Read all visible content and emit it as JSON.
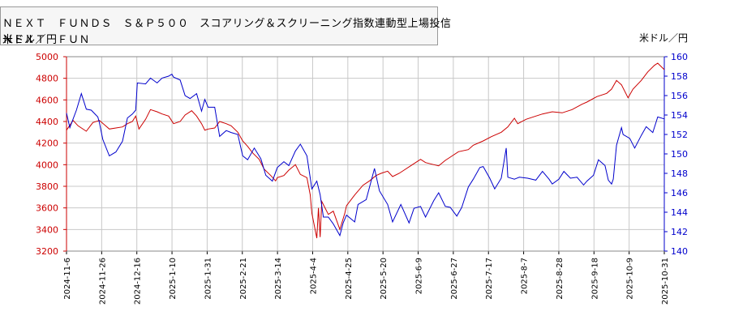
{
  "title": {
    "line1": "ＮＥＸＴ　ＦＵＮＤＳ　Ｓ＆Ｐ５００　スコアリング＆スクリーニング指数連動型上場投信",
    "line2_overlap_a": "米ドル／円",
    "line2_overlap_b": "ＮＥＸＴ　ＦＵＮ"
  },
  "right_unit": "米ドル／円",
  "colors": {
    "fund": "#cc0000",
    "usdjpy": "#0000cc",
    "grid": "#c8c8c8",
    "left_axis": "#cc0000",
    "right_axis": "#0000cc"
  },
  "chart_data": {
    "type": "line",
    "x_labels": [
      "2024-11-6",
      "2024-11-26",
      "2024-12-16",
      "2025-1-10",
      "2025-1-31",
      "2025-2-21",
      "2025-3-14",
      "2025-4-4",
      "2025-4-25",
      "2025-5-20",
      "2025-6-9",
      "2025-6-27",
      "2025-7-17",
      "2025-8-7",
      "2025-8-28",
      "2025-9-18",
      "2025-10-9",
      "2025-10-31"
    ],
    "x_range": [
      "2024-11-06",
      "2025-11-04"
    ],
    "y_left": {
      "ticks": [
        3200,
        3400,
        3600,
        3800,
        4000,
        4200,
        4400,
        4600,
        4800,
        5000
      ],
      "range": [
        3200,
        5000
      ]
    },
    "y_right": {
      "ticks": [
        140,
        142,
        144,
        146,
        148,
        150,
        152,
        154,
        156,
        158,
        160
      ],
      "range": [
        140,
        160
      ]
    },
    "grid": true,
    "series": [
      {
        "axis": "left",
        "points": [
          [
            "2024-11-06",
            4320
          ],
          [
            "2024-11-10",
            4410
          ],
          [
            "2024-11-13",
            4360
          ],
          [
            "2024-11-18",
            4310
          ],
          [
            "2024-11-22",
            4390
          ],
          [
            "2024-11-26",
            4410
          ],
          [
            "2024-12-02",
            4330
          ],
          [
            "2024-12-06",
            4340
          ],
          [
            "2024-12-10",
            4350
          ],
          [
            "2024-12-13",
            4380
          ],
          [
            "2024-12-16",
            4400
          ],
          [
            "2024-12-18",
            4450
          ],
          [
            "2024-12-20",
            4330
          ],
          [
            "2024-12-24",
            4420
          ],
          [
            "2024-12-27",
            4510
          ],
          [
            "2024-12-31",
            4490
          ],
          [
            "2025-01-03",
            4470
          ],
          [
            "2025-01-07",
            4450
          ],
          [
            "2025-01-10",
            4380
          ],
          [
            "2025-01-14",
            4400
          ],
          [
            "2025-01-17",
            4460
          ],
          [
            "2025-01-21",
            4500
          ],
          [
            "2025-01-24",
            4450
          ],
          [
            "2025-01-27",
            4380
          ],
          [
            "2025-01-29",
            4320
          ],
          [
            "2025-01-31",
            4330
          ],
          [
            "2025-02-04",
            4340
          ],
          [
            "2025-02-07",
            4400
          ],
          [
            "2025-02-11",
            4380
          ],
          [
            "2025-02-14",
            4360
          ],
          [
            "2025-02-18",
            4300
          ],
          [
            "2025-02-21",
            4220
          ],
          [
            "2025-02-24",
            4170
          ],
          [
            "2025-02-27",
            4110
          ],
          [
            "2025-03-03",
            4050
          ],
          [
            "2025-03-06",
            3960
          ],
          [
            "2025-03-10",
            3900
          ],
          [
            "2025-03-13",
            3850
          ],
          [
            "2025-03-14",
            3880
          ],
          [
            "2025-03-18",
            3900
          ],
          [
            "2025-03-21",
            3950
          ],
          [
            "2025-03-25",
            4000
          ],
          [
            "2025-03-28",
            3910
          ],
          [
            "2025-04-01",
            3880
          ],
          [
            "2025-04-03",
            3720
          ],
          [
            "2025-04-04",
            3550
          ],
          [
            "2025-04-07",
            3320
          ],
          [
            "2025-04-08",
            3600
          ],
          [
            "2025-04-09",
            3330
          ],
          [
            "2025-04-10",
            3660
          ],
          [
            "2025-04-14",
            3540
          ],
          [
            "2025-04-17",
            3570
          ],
          [
            "2025-04-21",
            3400
          ],
          [
            "2025-04-24",
            3550
          ],
          [
            "2025-04-25",
            3620
          ],
          [
            "2025-04-30",
            3720
          ],
          [
            "2025-05-05",
            3810
          ],
          [
            "2025-05-09",
            3850
          ],
          [
            "2025-05-13",
            3900
          ],
          [
            "2025-05-16",
            3920
          ],
          [
            "2025-05-20",
            3940
          ],
          [
            "2025-05-23",
            3890
          ],
          [
            "2025-05-27",
            3920
          ],
          [
            "2025-05-30",
            3950
          ],
          [
            "2025-06-04",
            4000
          ],
          [
            "2025-06-09",
            4050
          ],
          [
            "2025-06-12",
            4020
          ],
          [
            "2025-06-17",
            4000
          ],
          [
            "2025-06-20",
            3990
          ],
          [
            "2025-06-24",
            4040
          ],
          [
            "2025-06-27",
            4070
          ],
          [
            "2025-07-02",
            4120
          ],
          [
            "2025-07-08",
            4140
          ],
          [
            "2025-07-11",
            4180
          ],
          [
            "2025-07-17",
            4220
          ],
          [
            "2025-07-22",
            4260
          ],
          [
            "2025-07-28",
            4300
          ],
          [
            "2025-08-01",
            4350
          ],
          [
            "2025-08-05",
            4430
          ],
          [
            "2025-08-07",
            4380
          ],
          [
            "2025-08-12",
            4420
          ],
          [
            "2025-08-18",
            4450
          ],
          [
            "2025-08-22",
            4470
          ],
          [
            "2025-08-28",
            4490
          ],
          [
            "2025-09-03",
            4480
          ],
          [
            "2025-09-09",
            4510
          ],
          [
            "2025-09-15",
            4560
          ],
          [
            "2025-09-18",
            4580
          ],
          [
            "2025-09-24",
            4630
          ],
          [
            "2025-09-30",
            4660
          ],
          [
            "2025-10-03",
            4700
          ],
          [
            "2025-10-06",
            4780
          ],
          [
            "2025-10-09",
            4740
          ],
          [
            "2025-10-13",
            4620
          ],
          [
            "2025-10-16",
            4700
          ],
          [
            "2025-10-21",
            4780
          ],
          [
            "2025-10-25",
            4860
          ],
          [
            "2025-10-29",
            4920
          ],
          [
            "2025-10-31",
            4940
          ],
          [
            "2025-11-04",
            4880
          ]
        ]
      },
      {
        "axis": "right",
        "points": [
          [
            "2024-11-06",
            154.2
          ],
          [
            "2024-11-08",
            152.7
          ],
          [
            "2024-11-12",
            154.5
          ],
          [
            "2024-11-15",
            156.2
          ],
          [
            "2024-11-18",
            154.6
          ],
          [
            "2024-11-21",
            154.5
          ],
          [
            "2024-11-25",
            153.8
          ],
          [
            "2024-11-26",
            153.2
          ],
          [
            "2024-11-28",
            151.5
          ],
          [
            "2024-12-02",
            149.8
          ],
          [
            "2024-12-06",
            150.2
          ],
          [
            "2024-12-10",
            151.3
          ],
          [
            "2024-12-13",
            153.7
          ],
          [
            "2024-12-16",
            154.1
          ],
          [
            "2024-12-18",
            154.5
          ],
          [
            "2024-12-19",
            157.3
          ],
          [
            "2024-12-24",
            157.2
          ],
          [
            "2024-12-27",
            157.8
          ],
          [
            "2024-12-31",
            157.3
          ],
          [
            "2025-01-03",
            157.8
          ],
          [
            "2025-01-07",
            158.0
          ],
          [
            "2025-01-09",
            158.2
          ],
          [
            "2025-01-10",
            157.9
          ],
          [
            "2025-01-14",
            157.6
          ],
          [
            "2025-01-17",
            156.0
          ],
          [
            "2025-01-20",
            155.7
          ],
          [
            "2025-01-24",
            156.2
          ],
          [
            "2025-01-27",
            154.4
          ],
          [
            "2025-01-29",
            155.6
          ],
          [
            "2025-01-31",
            154.8
          ],
          [
            "2025-02-04",
            154.8
          ],
          [
            "2025-02-07",
            151.8
          ],
          [
            "2025-02-11",
            152.4
          ],
          [
            "2025-02-14",
            152.2
          ],
          [
            "2025-02-18",
            152.0
          ],
          [
            "2025-02-21",
            149.8
          ],
          [
            "2025-02-24",
            149.4
          ],
          [
            "2025-02-28",
            150.6
          ],
          [
            "2025-03-04",
            149.5
          ],
          [
            "2025-03-07",
            147.8
          ],
          [
            "2025-03-11",
            147.2
          ],
          [
            "2025-03-14",
            148.6
          ],
          [
            "2025-03-18",
            149.2
          ],
          [
            "2025-03-21",
            148.8
          ],
          [
            "2025-03-25",
            150.3
          ],
          [
            "2025-03-28",
            151.0
          ],
          [
            "2025-04-01",
            149.8
          ],
          [
            "2025-04-04",
            146.4
          ],
          [
            "2025-04-07",
            147.2
          ],
          [
            "2025-04-09",
            145.8
          ],
          [
            "2025-04-11",
            143.5
          ],
          [
            "2025-04-14",
            143.5
          ],
          [
            "2025-04-17",
            142.8
          ],
          [
            "2025-04-21",
            141.6
          ],
          [
            "2025-04-23",
            142.9
          ],
          [
            "2025-04-25",
            143.7
          ],
          [
            "2025-04-30",
            143.0
          ],
          [
            "2025-05-02",
            144.8
          ],
          [
            "2025-05-07",
            145.3
          ],
          [
            "2025-05-12",
            148.5
          ],
          [
            "2025-05-15",
            146.2
          ],
          [
            "2025-05-20",
            144.8
          ],
          [
            "2025-05-23",
            143.0
          ],
          [
            "2025-05-28",
            144.8
          ],
          [
            "2025-06-02",
            142.9
          ],
          [
            "2025-06-05",
            144.4
          ],
          [
            "2025-06-09",
            144.6
          ],
          [
            "2025-06-12",
            143.5
          ],
          [
            "2025-06-17",
            145.2
          ],
          [
            "2025-06-20",
            146.0
          ],
          [
            "2025-06-24",
            144.6
          ],
          [
            "2025-06-27",
            144.5
          ],
          [
            "2025-07-01",
            143.6
          ],
          [
            "2025-07-04",
            144.5
          ],
          [
            "2025-07-08",
            146.6
          ],
          [
            "2025-07-11",
            147.4
          ],
          [
            "2025-07-15",
            148.6
          ],
          [
            "2025-07-17",
            148.7
          ],
          [
            "2025-07-21",
            147.5
          ],
          [
            "2025-07-24",
            146.4
          ],
          [
            "2025-07-28",
            147.5
          ],
          [
            "2025-07-31",
            150.6
          ],
          [
            "2025-08-01",
            147.6
          ],
          [
            "2025-08-05",
            147.4
          ],
          [
            "2025-08-08",
            147.6
          ],
          [
            "2025-08-13",
            147.5
          ],
          [
            "2025-08-18",
            147.3
          ],
          [
            "2025-08-22",
            148.2
          ],
          [
            "2025-08-26",
            147.4
          ],
          [
            "2025-08-28",
            146.9
          ],
          [
            "2025-09-01",
            147.4
          ],
          [
            "2025-09-04",
            148.2
          ],
          [
            "2025-09-08",
            147.5
          ],
          [
            "2025-09-12",
            147.6
          ],
          [
            "2025-09-16",
            146.8
          ],
          [
            "2025-09-18",
            147.2
          ],
          [
            "2025-09-22",
            147.8
          ],
          [
            "2025-09-25",
            149.4
          ],
          [
            "2025-09-29",
            148.8
          ],
          [
            "2025-10-01",
            147.3
          ],
          [
            "2025-10-03",
            146.9
          ],
          [
            "2025-10-04",
            147.4
          ],
          [
            "2025-10-06",
            150.9
          ],
          [
            "2025-10-09",
            152.7
          ],
          [
            "2025-10-10",
            152.0
          ],
          [
            "2025-10-14",
            151.6
          ],
          [
            "2025-10-17",
            150.6
          ],
          [
            "2025-10-21",
            151.9
          ],
          [
            "2025-10-24",
            152.8
          ],
          [
            "2025-10-28",
            152.2
          ],
          [
            "2025-10-31",
            153.8
          ],
          [
            "2025-11-04",
            153.6
          ]
        ]
      }
    ]
  }
}
